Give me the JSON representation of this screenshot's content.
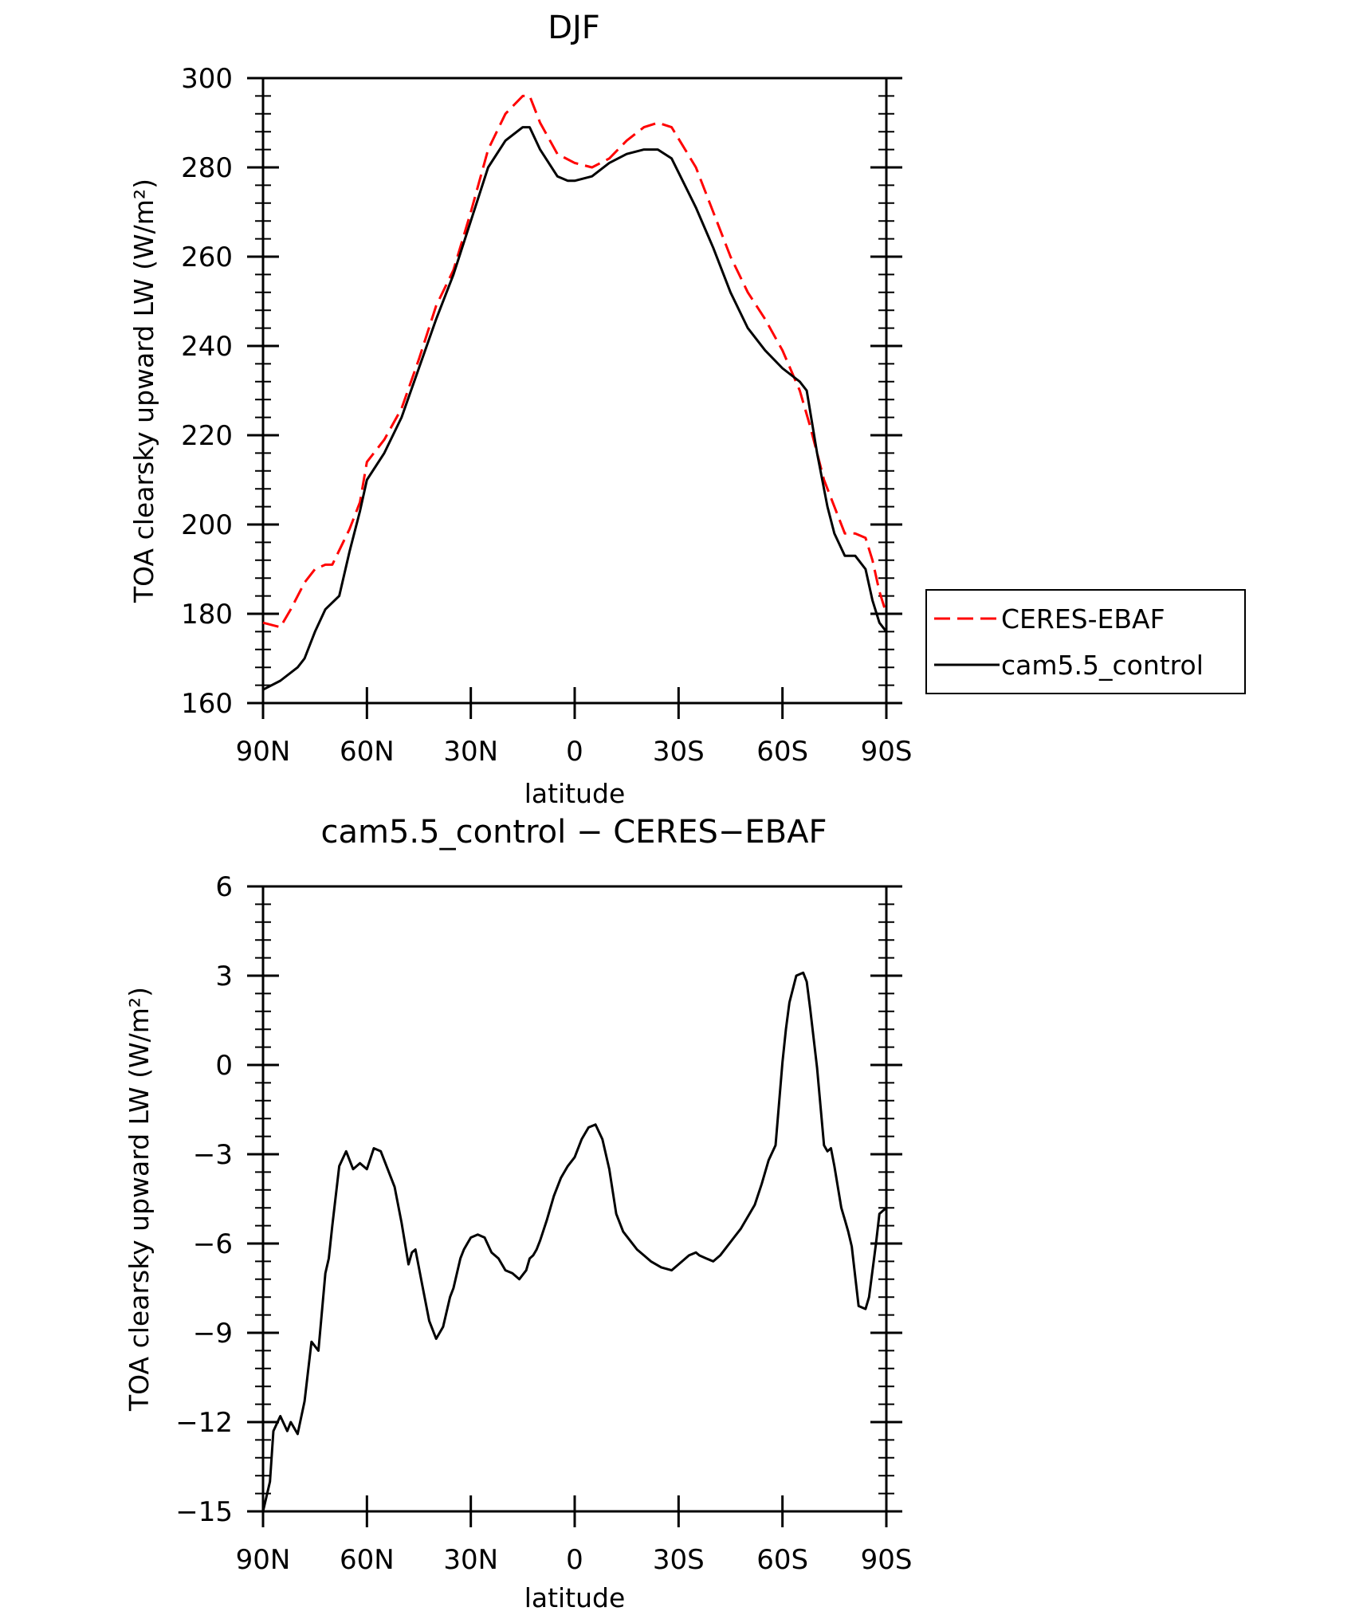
{
  "chart_data": [
    {
      "type": "line",
      "title": "DJF",
      "xlabel": "latitude",
      "ylabel": "TOA clearsky upward LW (W/m²)",
      "xlim": [
        90,
        -90
      ],
      "ylim": [
        160,
        300
      ],
      "xticks": [
        90,
        60,
        30,
        0,
        -30,
        -60,
        -90
      ],
      "xtick_labels": [
        "90N",
        "60N",
        "30N",
        "0",
        "30S",
        "60S",
        "90S"
      ],
      "yticks": [
        160,
        180,
        200,
        220,
        240,
        260,
        280,
        300
      ],
      "ytick_labels": [
        "160",
        "180",
        "200",
        "220",
        "240",
        "260",
        "280",
        "300"
      ],
      "legend_position": "right",
      "series": [
        {
          "name": "CERES-EBAF",
          "color": "#ff0000",
          "dash": "dashed",
          "x": [
            90,
            85,
            82,
            78,
            75,
            72,
            70,
            65,
            62,
            60,
            55,
            50,
            45,
            40,
            35,
            30,
            25,
            20,
            15,
            13,
            10,
            5,
            0,
            -5,
            -10,
            -15,
            -20,
            -24,
            -28,
            -35,
            -40,
            -45,
            -50,
            -55,
            -60,
            -65,
            -68,
            -72,
            -75,
            -78,
            -81,
            -84,
            -86,
            -88,
            -90
          ],
          "values": [
            178,
            177,
            181,
            187,
            190,
            191,
            191,
            199,
            205,
            214,
            219,
            226,
            237,
            249,
            257,
            270,
            284,
            292,
            296,
            296,
            290,
            283,
            281,
            280,
            282,
            286,
            289,
            290,
            289,
            280,
            270,
            260,
            252,
            246,
            239,
            230,
            222,
            210,
            204,
            198,
            198,
            197,
            192,
            185,
            180
          ]
        },
        {
          "name": "cam5.5_control",
          "color": "#000000",
          "dash": "solid",
          "x": [
            90,
            85,
            80,
            78,
            75,
            72,
            68,
            65,
            62,
            60,
            55,
            50,
            45,
            40,
            35,
            30,
            25,
            20,
            15,
            13,
            10,
            5,
            2,
            0,
            -5,
            -10,
            -15,
            -20,
            -24,
            -28,
            -35,
            -40,
            -45,
            -50,
            -55,
            -60,
            -65,
            -67,
            -70,
            -73,
            -75,
            -78,
            -81,
            -84,
            -86,
            -88,
            -90
          ],
          "values": [
            163,
            165,
            168,
            170,
            176,
            181,
            184,
            194,
            203,
            210,
            216,
            224,
            235,
            246,
            256,
            268,
            280,
            286,
            289,
            289,
            284,
            278,
            277,
            277,
            278,
            281,
            283,
            284,
            284,
            282,
            271,
            262,
            252,
            244,
            239,
            235,
            232,
            230,
            216,
            204,
            198,
            193,
            193,
            190,
            183,
            178,
            176
          ]
        }
      ]
    },
    {
      "type": "line",
      "title": "cam5.5_control − CERES−EBAF",
      "xlabel": "latitude",
      "ylabel": "TOA clearsky upward LW (W/m²)",
      "xlim": [
        90,
        -90
      ],
      "ylim": [
        -15,
        6
      ],
      "xticks": [
        90,
        60,
        30,
        0,
        -30,
        -60,
        -90
      ],
      "xtick_labels": [
        "90N",
        "60N",
        "30N",
        "0",
        "30S",
        "60S",
        "90S"
      ],
      "yticks": [
        -15,
        -12,
        -9,
        -6,
        -3,
        0,
        3,
        6
      ],
      "ytick_labels": [
        "−15",
        "−12",
        "−9",
        "−6",
        "−3",
        "0",
        "3",
        "6"
      ],
      "series": [
        {
          "name": "cam5.5_control − CERES−EBAF",
          "color": "#000000",
          "dash": "solid",
          "x": [
            90,
            88,
            87,
            85,
            83,
            82,
            80,
            78,
            76,
            74,
            72,
            71,
            70,
            68,
            66,
            64,
            62,
            60,
            58,
            56,
            54,
            52,
            50,
            48,
            47,
            46,
            44,
            42,
            40,
            38,
            36,
            35,
            33,
            32,
            31,
            30,
            28,
            26,
            24,
            22,
            20,
            18,
            16,
            14,
            13,
            12,
            11,
            10,
            8,
            6,
            4,
            2,
            0,
            -2,
            -4,
            -6,
            -8,
            -10,
            -12,
            -14,
            -16,
            -18,
            -20,
            -22,
            -25,
            -28,
            -31,
            -33,
            -35,
            -36,
            -38,
            -40,
            -42,
            -44,
            -46,
            -48,
            -50,
            -52,
            -54,
            -56,
            -58,
            -60,
            -61,
            -62,
            -64,
            -66,
            -67,
            -68,
            -70,
            -72,
            -73,
            -74,
            -75,
            -77,
            -78,
            -79,
            -80,
            -82,
            -84,
            -85,
            -87,
            -88,
            -89,
            -90
          ],
          "values": [
            -15,
            -14,
            -12.3,
            -11.8,
            -12.3,
            -12,
            -12.4,
            -11.3,
            -9.3,
            -9.6,
            -7,
            -6.5,
            -5.4,
            -3.4,
            -2.9,
            -3.5,
            -3.3,
            -3.5,
            -2.8,
            -2.9,
            -3.5,
            -4.1,
            -5.3,
            -6.7,
            -6.3,
            -6.2,
            -7.4,
            -8.6,
            -9.2,
            -8.8,
            -7.8,
            -7.5,
            -6.5,
            -6.2,
            -6,
            -5.8,
            -5.7,
            -5.8,
            -6.3,
            -6.5,
            -6.9,
            -7,
            -7.2,
            -6.9,
            -6.5,
            -6.4,
            -6.2,
            -5.9,
            -5.2,
            -4.4,
            -3.8,
            -3.4,
            -3.1,
            -2.5,
            -2.1,
            -2,
            -2.5,
            -3.5,
            -5,
            -5.6,
            -5.9,
            -6.2,
            -6.4,
            -6.6,
            -6.8,
            -6.9,
            -6.6,
            -6.4,
            -6.3,
            -6.4,
            -6.5,
            -6.6,
            -6.4,
            -6.1,
            -5.8,
            -5.5,
            -5.1,
            -4.7,
            -4,
            -3.2,
            -2.7,
            0.1,
            1.2,
            2.1,
            3,
            3.1,
            2.8,
            1.9,
            -0.1,
            -2.7,
            -2.9,
            -2.8,
            -3.4,
            -4.8,
            -5.2,
            -5.6,
            -6.1,
            -8.1,
            -8.2,
            -7.8,
            -6,
            -5,
            -4.9,
            -4.8
          ]
        }
      ]
    }
  ]
}
